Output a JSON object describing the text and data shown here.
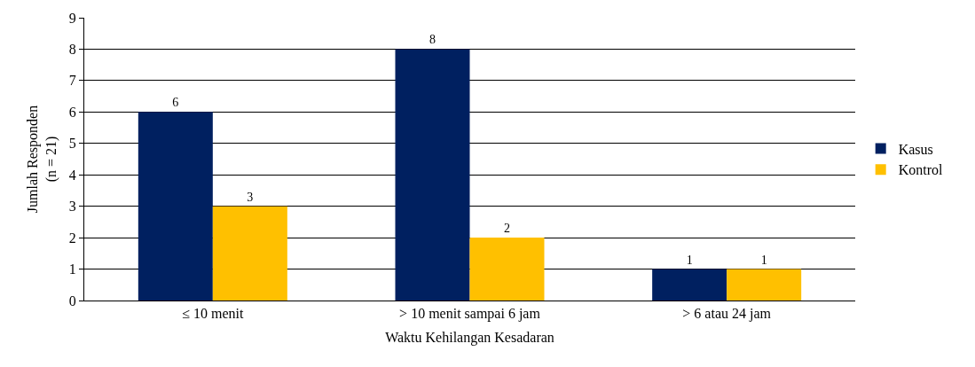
{
  "chart_data": {
    "type": "bar",
    "xlabel": "Waktu Kehilangan Kesadaran",
    "ylabel": "Jumlah Responden\n(n = 21)",
    "categories": [
      "≤ 10 menit",
      "> 10 menit sampai 6 jam",
      "> 6 atau 24 jam"
    ],
    "series": [
      {
        "name": "Kasus",
        "color": "#002060",
        "values": [
          6,
          8,
          1
        ]
      },
      {
        "name": "Kontrol",
        "color": "#ffc000",
        "values": [
          3,
          2,
          1
        ]
      }
    ],
    "ylim": [
      0,
      9
    ],
    "yticks": [
      0,
      1,
      2,
      3,
      4,
      5,
      6,
      7,
      8,
      9
    ],
    "grid": "y",
    "legend": "right",
    "data_labels": true
  }
}
